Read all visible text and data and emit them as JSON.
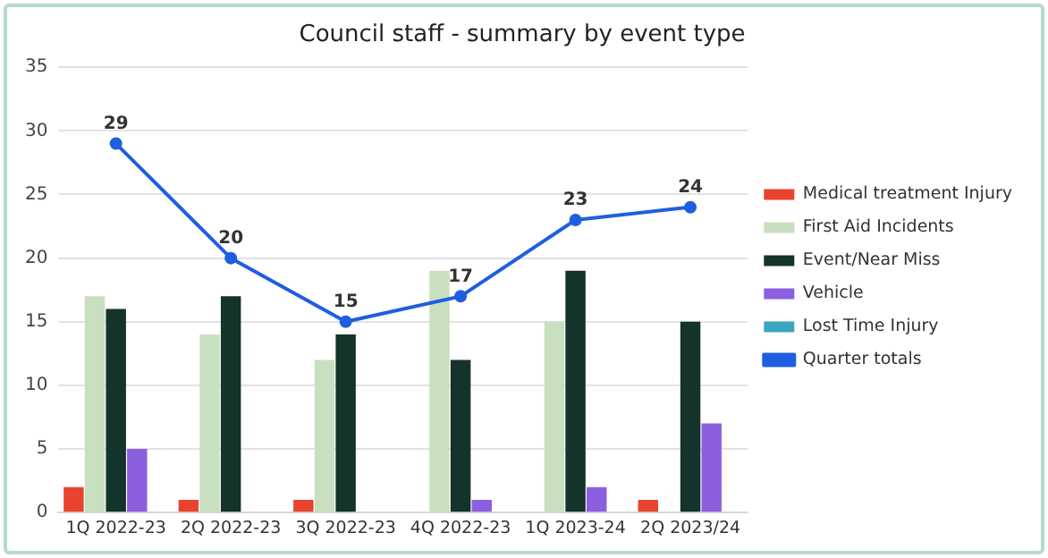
{
  "chart_data": {
    "type": "bar",
    "title": "Council staff - summary by event type",
    "categories": [
      "1Q 2022-23",
      "2Q 2022-23",
      "3Q 2022-23",
      "4Q 2022-23",
      "1Q 2023-24",
      "2Q 2023/24"
    ],
    "series": [
      {
        "name": "Medical treatment Injury",
        "color": "#e8432e",
        "values": [
          2,
          1,
          1,
          0,
          0,
          1
        ]
      },
      {
        "name": "First Aid Incidents",
        "color": "#c8e0c0",
        "values": [
          17,
          14,
          12,
          19,
          15,
          0
        ]
      },
      {
        "name": "Event/Near Miss",
        "color": "#14332b",
        "values": [
          16,
          17,
          14,
          12,
          19,
          15
        ]
      },
      {
        "name": "Vehicle",
        "color": "#8b5fe0",
        "values": [
          5,
          0,
          0,
          1,
          2,
          7
        ]
      },
      {
        "name": "Lost Time Injury",
        "color": "#3aa6c0",
        "values": [
          0,
          0,
          0,
          0,
          0,
          0
        ]
      },
      {
        "name": "Quarter totals",
        "type": "line",
        "color": "#1f5ee0",
        "values": [
          29,
          20,
          15,
          17,
          23,
          24
        ],
        "value_labels": [
          "29",
          "20",
          "15",
          "17",
          "23",
          "24"
        ]
      }
    ],
    "ylim": [
      0,
      35
    ],
    "yticks": [
      0,
      5,
      10,
      15,
      20,
      25,
      30,
      35
    ],
    "grid": "y",
    "legend": "right",
    "marker": "circle"
  }
}
